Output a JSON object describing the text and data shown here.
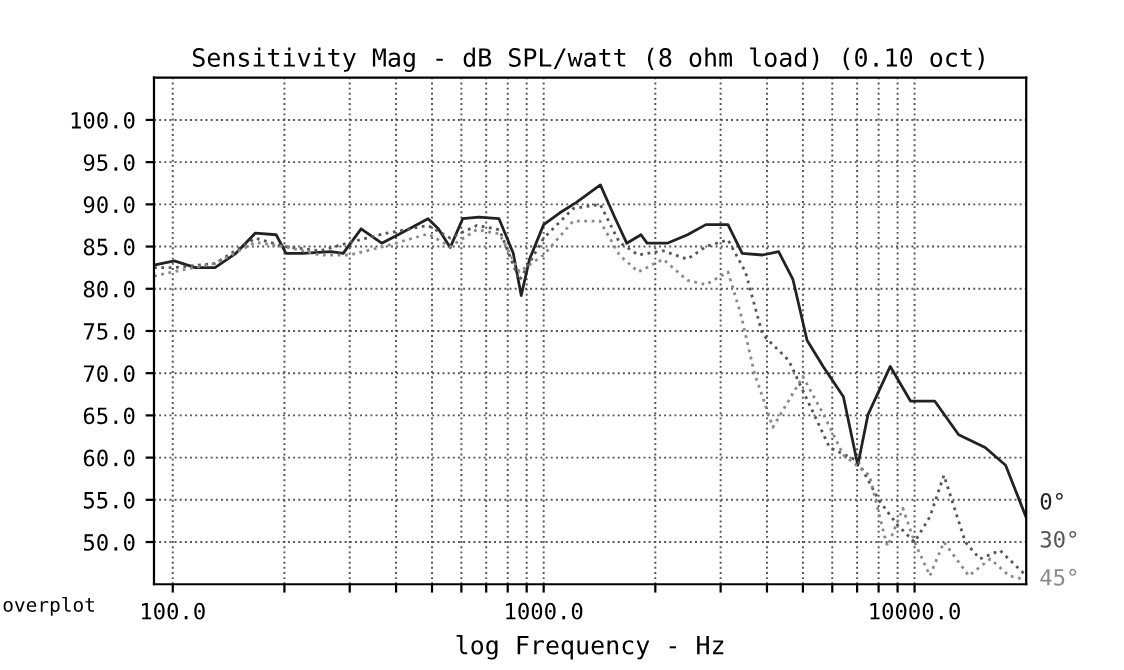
{
  "chart_data": {
    "type": "line",
    "title": "Sensitivity Mag - dB SPL/watt (8 ohm load) (0.10 oct)",
    "xlabel": "log Frequency - Hz",
    "annotations": [
      "overplot"
    ],
    "log": "x",
    "grid": true,
    "legend": "right",
    "xlim": [
      89,
      20000
    ],
    "xticks": [
      {
        "value": 100,
        "label": "100.0"
      },
      {
        "value": 200,
        "label": null
      },
      {
        "value": 300,
        "label": null
      },
      {
        "value": 400,
        "label": null
      },
      {
        "value": 500,
        "label": null
      },
      {
        "value": 600,
        "label": null
      },
      {
        "value": 700,
        "label": null
      },
      {
        "value": 800,
        "label": null
      },
      {
        "value": 900,
        "label": null
      },
      {
        "value": 1000,
        "label": "1000.0"
      },
      {
        "value": 2000,
        "label": null
      },
      {
        "value": 3000,
        "label": null
      },
      {
        "value": 4000,
        "label": null
      },
      {
        "value": 5000,
        "label": null
      },
      {
        "value": 6000,
        "label": null
      },
      {
        "value": 7000,
        "label": null
      },
      {
        "value": 8000,
        "label": null
      },
      {
        "value": 9000,
        "label": null
      },
      {
        "value": 10000,
        "label": "10000.0"
      }
    ],
    "ylim": [
      45,
      105
    ],
    "yticks": [
      {
        "value": 50,
        "label": "50.0"
      },
      {
        "value": 55,
        "label": "55.0"
      },
      {
        "value": 60,
        "label": "60.0"
      },
      {
        "value": 65,
        "label": "65.0"
      },
      {
        "value": 70,
        "label": "70.0"
      },
      {
        "value": 75,
        "label": "75.0"
      },
      {
        "value": 80,
        "label": "80.0"
      },
      {
        "value": 85,
        "label": "85.0"
      },
      {
        "value": 90,
        "label": "90.0"
      },
      {
        "value": 95,
        "label": "95.0"
      },
      {
        "value": 100,
        "label": "100.0"
      }
    ],
    "series": [
      {
        "name": "0°",
        "color": "#222222",
        "line_style": "solid",
        "x": [
          89,
          101,
          115,
          130,
          148,
          167,
          190,
          202,
          224,
          267,
          288,
          322,
          366,
          405,
          488,
          520,
          560,
          605,
          668,
          758,
          828,
          870,
          916,
          1000,
          1106,
          1223,
          1422,
          1553,
          1675,
          1830,
          1900,
          2154,
          2443,
          2738,
          3140,
          3430,
          3890,
          4300,
          4700,
          5130,
          5670,
          6430,
          7030,
          7490,
          8600,
          9750,
          11330,
          13150,
          15500,
          17600,
          20000
        ],
        "values": [
          82.8,
          83.3,
          82.5,
          82.5,
          84.2,
          86.6,
          86.4,
          84.2,
          84.2,
          84.4,
          84.2,
          87.1,
          85.4,
          86.4,
          88.3,
          87.1,
          84.9,
          88.3,
          88.5,
          88.3,
          84.2,
          79.2,
          83.5,
          87.6,
          89,
          90.2,
          92.3,
          88.5,
          85.4,
          86.4,
          85.4,
          85.4,
          86.4,
          87.6,
          87.6,
          84.2,
          84,
          84.4,
          81.1,
          73.9,
          70.8,
          67.2,
          59.1,
          65.1,
          70.8,
          66.7,
          66.7,
          62.7,
          61.2,
          59.1,
          52.9
        ]
      },
      {
        "name": "30°",
        "color": "#555555",
        "line_style": "dotted",
        "x": [
          89,
          100,
          130,
          167,
          200,
          250,
          300,
          370,
          488,
          560,
          660,
          760,
          860,
          1000,
          1200,
          1420,
          1600,
          1800,
          2100,
          2440,
          2740,
          3140,
          3500,
          3890,
          4580,
          5900,
          7030,
          8000,
          9000,
          10000,
          11000,
          12000,
          13700,
          15000,
          17000,
          20000
        ],
        "values": [
          82.5,
          82.5,
          83,
          86,
          85,
          84.5,
          85.5,
          86.5,
          87.5,
          86,
          87.5,
          87,
          81,
          86,
          89.5,
          90,
          85.5,
          84,
          84.5,
          83.5,
          85,
          85.8,
          82,
          74.6,
          71.5,
          61.2,
          59.6,
          55,
          52,
          50,
          53,
          57.9,
          50,
          48,
          49,
          46
        ]
      },
      {
        "name": "45°",
        "color": "#8a8a8a",
        "line_style": "dotted",
        "x": [
          89,
          100,
          130,
          167,
          200,
          250,
          300,
          370,
          488,
          560,
          660,
          760,
          860,
          1000,
          1200,
          1420,
          1600,
          1800,
          2100,
          2440,
          2740,
          3140,
          3400,
          3700,
          4150,
          5000,
          5700,
          6430,
          7560,
          8300,
          8460,
          9300,
          10000,
          11000,
          12000,
          14000,
          16000,
          18000,
          20000
        ],
        "values": [
          81.5,
          82,
          83,
          85.5,
          85,
          84,
          84,
          85,
          86.5,
          85,
          87,
          86.5,
          82,
          84,
          88,
          88,
          84,
          82,
          83.5,
          81,
          80.5,
          82,
          77,
          70,
          63.6,
          69.6,
          65,
          60.3,
          57.9,
          50.7,
          49.5,
          54,
          50,
          46,
          50,
          46,
          48,
          46,
          45.5
        ]
      }
    ]
  }
}
